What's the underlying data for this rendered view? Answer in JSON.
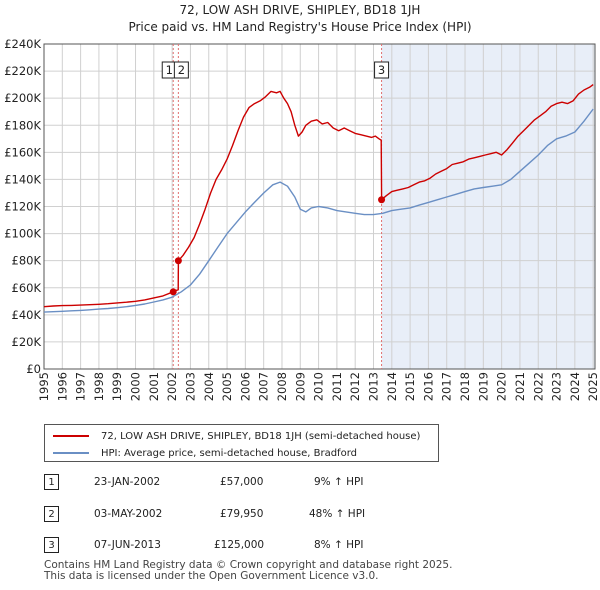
{
  "chart_data": {
    "type": "line",
    "title": "72, LOW ASH DRIVE, SHIPLEY, BD18 1JH",
    "subtitle": "Price paid vs. HM Land Registry's House Price Index (HPI)",
    "xlim": [
      1995,
      2025.1
    ],
    "ylim": [
      0,
      240000
    ],
    "y_ticks": [
      {
        "value": 0,
        "label": "£0"
      },
      {
        "value": 20000,
        "label": "£20K"
      },
      {
        "value": 40000,
        "label": "£40K"
      },
      {
        "value": 60000,
        "label": "£60K"
      },
      {
        "value": 80000,
        "label": "£80K"
      },
      {
        "value": 100000,
        "label": "£100K"
      },
      {
        "value": 120000,
        "label": "£120K"
      },
      {
        "value": 140000,
        "label": "£140K"
      },
      {
        "value": 160000,
        "label": "£160K"
      },
      {
        "value": 180000,
        "label": "£180K"
      },
      {
        "value": 200000,
        "label": "£200K"
      },
      {
        "value": 220000,
        "label": "£220K"
      },
      {
        "value": 240000,
        "label": "£240K"
      }
    ],
    "x_ticks": [
      "1995",
      "1996",
      "1997",
      "1998",
      "1999",
      "2000",
      "2001",
      "2002",
      "2003",
      "2004",
      "2005",
      "2006",
      "2007",
      "2008",
      "2009",
      "2010",
      "2011",
      "2012",
      "2013",
      "2014",
      "2015",
      "2016",
      "2017",
      "2018",
      "2019",
      "2020",
      "2021",
      "2022",
      "2023",
      "2024",
      "2025"
    ],
    "shaded_region": [
      2013.44,
      2025.1
    ],
    "series": [
      {
        "name": "72, LOW ASH DRIVE, SHIPLEY, BD18 1JH (semi-detached house)",
        "color": "#cc0000",
        "x": [
          1995.0,
          1995.5,
          1996.0,
          1996.5,
          1997.0,
          1997.5,
          1998.0,
          1998.5,
          1999.0,
          1999.5,
          2000.0,
          2000.5,
          2001.0,
          2001.5,
          2002.06,
          2002.1,
          2002.33,
          2002.34,
          2002.6,
          2002.9,
          2003.2,
          2003.5,
          2003.8,
          2004.1,
          2004.4,
          2004.7,
          2005.0,
          2005.3,
          2005.6,
          2005.9,
          2006.2,
          2006.5,
          2006.8,
          2007.1,
          2007.4,
          2007.7,
          2007.9,
          2008.1,
          2008.3,
          2008.5,
          2008.7,
          2008.9,
          2009.1,
          2009.3,
          2009.6,
          2009.9,
          2010.2,
          2010.5,
          2010.8,
          2011.1,
          2011.4,
          2011.7,
          2012.0,
          2012.3,
          2012.6,
          2012.9,
          2013.1,
          2013.3,
          2013.42,
          2013.44,
          2013.7,
          2014.0,
          2014.3,
          2014.6,
          2014.9,
          2015.2,
          2015.5,
          2015.8,
          2016.1,
          2016.4,
          2016.7,
          2017.0,
          2017.3,
          2017.6,
          2017.9,
          2018.2,
          2018.5,
          2018.8,
          2019.1,
          2019.4,
          2019.7,
          2020.0,
          2020.3,
          2020.6,
          2020.9,
          2021.2,
          2021.5,
          2021.8,
          2022.1,
          2022.4,
          2022.7,
          2023.0,
          2023.3,
          2023.6,
          2023.9,
          2024.2,
          2024.5,
          2024.8,
          2025.0
        ],
        "y": [
          46000,
          46500,
          46800,
          47000,
          47200,
          47500,
          47800,
          48200,
          48800,
          49300,
          50000,
          51000,
          52500,
          54000,
          57000,
          57500,
          58500,
          79950,
          84000,
          90000,
          97000,
          107000,
          118000,
          130000,
          140000,
          147000,
          155000,
          165000,
          176000,
          186000,
          193000,
          196000,
          198000,
          201000,
          205000,
          204000,
          205000,
          200000,
          196000,
          190000,
          180000,
          172000,
          175000,
          180000,
          183000,
          184000,
          181000,
          182000,
          178000,
          176000,
          178000,
          176000,
          174000,
          173000,
          172000,
          171000,
          172000,
          170000,
          169000,
          125000,
          128000,
          131000,
          132000,
          133000,
          134000,
          136000,
          138000,
          139000,
          141000,
          144000,
          146000,
          148000,
          151000,
          152000,
          153000,
          155000,
          156000,
          157000,
          158000,
          159000,
          160000,
          158000,
          162000,
          167000,
          172000,
          176000,
          180000,
          184000,
          187000,
          190000,
          194000,
          196000,
          197000,
          196000,
          198000,
          203000,
          206000,
          208000,
          210000
        ]
      },
      {
        "name": "HPI: Average price, semi-detached house, Bradford",
        "color": "#6a8fc4",
        "x": [
          1995.0,
          1995.5,
          1996.0,
          1996.5,
          1997.0,
          1997.5,
          1998.0,
          1998.5,
          1999.0,
          1999.5,
          2000.0,
          2000.5,
          2001.0,
          2001.5,
          2002.0,
          2002.5,
          2003.0,
          2003.5,
          2004.0,
          2004.5,
          2005.0,
          2005.5,
          2006.0,
          2006.5,
          2007.0,
          2007.5,
          2007.9,
          2008.3,
          2008.7,
          2009.0,
          2009.3,
          2009.6,
          2010.0,
          2010.5,
          2011.0,
          2011.5,
          2012.0,
          2012.5,
          2013.0,
          2013.5,
          2014.0,
          2014.5,
          2015.0,
          2015.5,
          2016.0,
          2016.5,
          2017.0,
          2017.5,
          2018.0,
          2018.5,
          2019.0,
          2019.5,
          2020.0,
          2020.5,
          2021.0,
          2021.5,
          2022.0,
          2022.5,
          2023.0,
          2023.5,
          2024.0,
          2024.5,
          2025.0
        ],
        "y": [
          42000,
          42300,
          42600,
          43000,
          43300,
          43700,
          44200,
          44700,
          45300,
          46000,
          47000,
          48000,
          49500,
          51000,
          53000,
          57000,
          62000,
          70000,
          80000,
          90000,
          100000,
          108000,
          116000,
          123000,
          130000,
          136000,
          138000,
          135000,
          127000,
          118000,
          116000,
          119000,
          120000,
          119000,
          117000,
          116000,
          115000,
          114000,
          114000,
          115000,
          117000,
          118000,
          119000,
          121000,
          123000,
          125000,
          127000,
          129000,
          131000,
          133000,
          134000,
          135000,
          136000,
          140000,
          146000,
          152000,
          158000,
          165000,
          170000,
          172000,
          175000,
          183000,
          192000
        ]
      }
    ],
    "sale_markers": [
      {
        "label": "1",
        "x": 2002.06,
        "y": 57000
      },
      {
        "label": "2",
        "x": 2002.34,
        "y": 79950
      },
      {
        "label": "3",
        "x": 2013.44,
        "y": 125000
      }
    ]
  },
  "legend": {
    "red_label": "72, LOW ASH DRIVE, SHIPLEY, BD18 1JH (semi-detached house)",
    "blue_label": "HPI: Average price, semi-detached house, Bradford"
  },
  "sales": [
    {
      "num": "1",
      "date": "23-JAN-2002",
      "price": "£57,000",
      "hpi": "9% ↑ HPI"
    },
    {
      "num": "2",
      "date": "03-MAY-2002",
      "price": "£79,950",
      "hpi": "48% ↑ HPI"
    },
    {
      "num": "3",
      "date": "07-JUN-2013",
      "price": "£125,000",
      "hpi": "8% ↑ HPI"
    }
  ],
  "footer": {
    "line1": "Contains HM Land Registry data © Crown copyright and database right 2025.",
    "line2": "This data is licensed under the Open Government Licence v3.0."
  },
  "colors": {
    "red": "#cc0000",
    "blue": "#6a8fc4",
    "shade": "#e8eef8",
    "grid": "#d0d0d0",
    "vline": "#e07070"
  }
}
